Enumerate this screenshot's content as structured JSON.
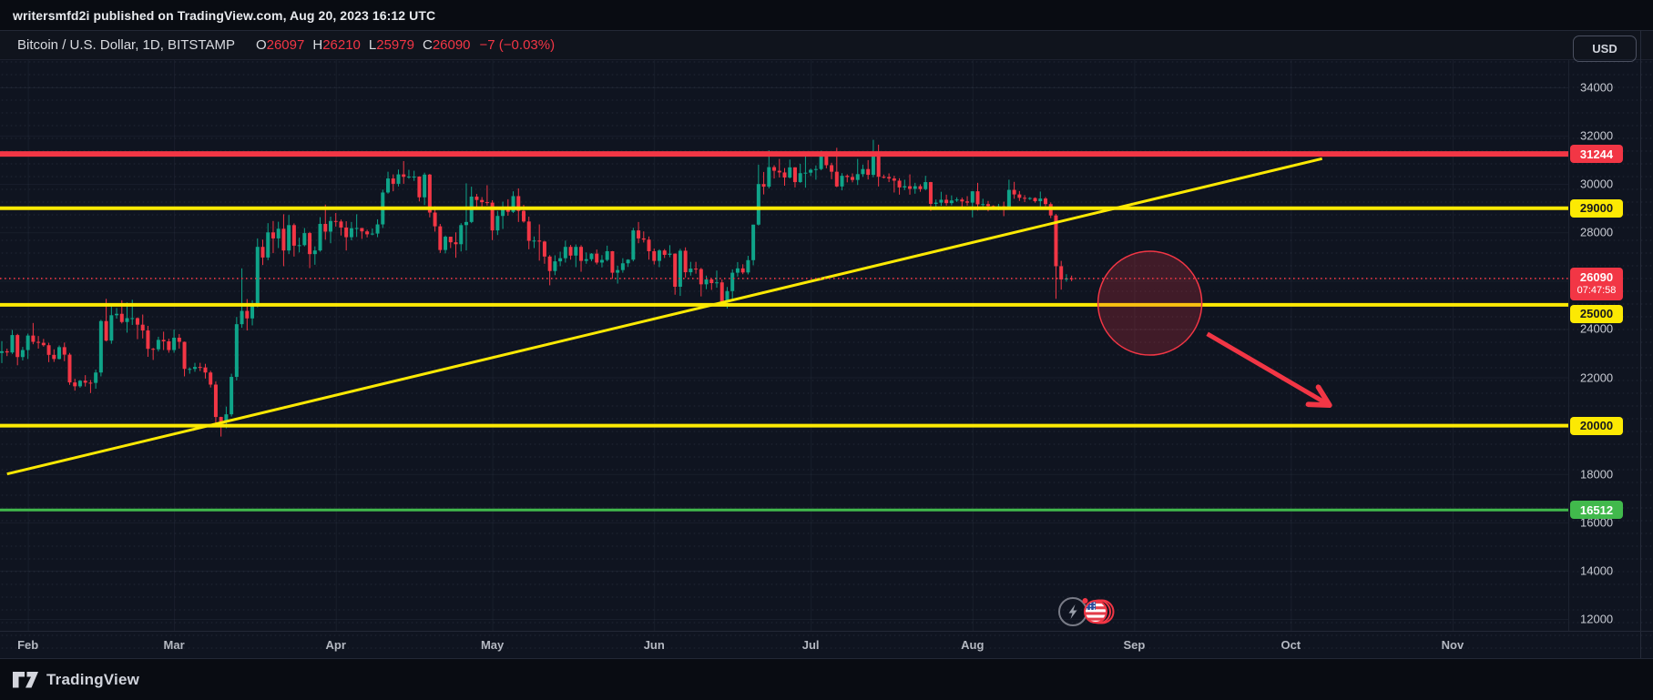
{
  "top_bar": {
    "text": "writersmfd2i published on TradingView.com, Aug 20, 2023 16:12 UTC"
  },
  "header": {
    "symbol": "Bitcoin / U.S. Dollar, 1D, BITSTAMP",
    "ohlc": {
      "o_label": "O",
      "o": "26097",
      "h_label": "H",
      "h": "26210",
      "l_label": "L",
      "l": "25979",
      "c_label": "C",
      "c": "26090"
    },
    "change": "−7 (−0.03%)",
    "currency_button": "USD"
  },
  "footer": {
    "brand": "TradingView"
  },
  "colors": {
    "up": "#0fa489",
    "down": "#f23645",
    "red": "#f23645",
    "yellow": "#fce903",
    "green": "#41b94c",
    "grid": "rgba(160,170,195,0.07)",
    "axis_text": "#c7cad2",
    "label_dark_text": "#15181e"
  },
  "chart_data": {
    "type": "candlestick",
    "title": "Bitcoin / U.S. Dollar",
    "timeframe": "1D",
    "exchange": "BITSTAMP",
    "ylim": [
      11510,
      35130
    ],
    "grid": true,
    "y_ticks": [
      34000,
      32000,
      30000,
      28000,
      26000,
      24000,
      22000,
      20000,
      18000,
      16000,
      14000,
      12000
    ],
    "x_ticks": [
      {
        "label": "Feb",
        "day": 5
      },
      {
        "label": "Mar",
        "day": 33
      },
      {
        "label": "Apr",
        "day": 64
      },
      {
        "label": "May",
        "day": 94
      },
      {
        "label": "Jun",
        "day": 125
      },
      {
        "label": "Jul",
        "day": 155
      },
      {
        "label": "Aug",
        "day": 186
      },
      {
        "label": "Sep",
        "day": 217
      },
      {
        "label": "Oct",
        "day": 247
      },
      {
        "label": "Nov",
        "day": 278
      }
    ],
    "price_lines": [
      {
        "price": 31244,
        "label": "31244",
        "color": "red",
        "thickness": 6,
        "label_text": "light"
      },
      {
        "price": 29000,
        "label": "29000",
        "color": "yellow",
        "thickness": 4,
        "label_text": "dark"
      },
      {
        "price": 25000,
        "label": "25000",
        "color": "yellow",
        "thickness": 4,
        "label_text": "dark",
        "label_below": true
      },
      {
        "price": 20000,
        "label": "20000",
        "color": "yellow",
        "thickness": 4,
        "label_text": "dark"
      },
      {
        "price": 16512,
        "label": "16512",
        "color": "green",
        "thickness": 3,
        "label_text": "light"
      }
    ],
    "last_price": {
      "value": 26090,
      "label": "26090",
      "countdown": "07:47:58",
      "color": "red"
    },
    "trendline": {
      "from": {
        "day": 1,
        "price": 18000
      },
      "to": {
        "day": 253,
        "price": 31050
      },
      "color": "yellow",
      "thickness": 3
    },
    "annotations": {
      "circle": {
        "center_day": 220,
        "center_price": 25070,
        "radius_px": 57,
        "color": "red"
      },
      "arrow": {
        "from": {
          "day": 231,
          "price": 23800
        },
        "to": {
          "day": 254,
          "price": 20900
        },
        "color": "red",
        "thickness": 5
      }
    },
    "candles": [
      [
        23010,
        23500,
        22590,
        23080
      ],
      [
        23080,
        23190,
        22880,
        23030
      ],
      [
        23030,
        23960,
        22970,
        23750
      ],
      [
        23750,
        23800,
        22500,
        22840
      ],
      [
        22840,
        23260,
        22700,
        23130
      ],
      [
        23130,
        23810,
        22760,
        23730
      ],
      [
        23730,
        24250,
        23370,
        23470
      ],
      [
        23470,
        23710,
        23190,
        23430
      ],
      [
        23430,
        23590,
        23270,
        23330
      ],
      [
        23330,
        23430,
        22630,
        22930
      ],
      [
        22930,
        23160,
        22640,
        22760
      ],
      [
        22760,
        23320,
        22740,
        23250
      ],
      [
        23250,
        23440,
        22670,
        22940
      ],
      [
        22940,
        23010,
        21690,
        21790
      ],
      [
        21790,
        21940,
        21450,
        21630
      ],
      [
        21630,
        21890,
        21570,
        21860
      ],
      [
        21860,
        22090,
        21620,
        21780
      ],
      [
        21780,
        21890,
        21350,
        21770
      ],
      [
        21770,
        22320,
        21530,
        22200
      ],
      [
        22200,
        24380,
        22040,
        24330
      ],
      [
        24330,
        25250,
        23490,
        23520
      ],
      [
        23520,
        24990,
        23390,
        24570
      ],
      [
        24570,
        24870,
        24430,
        24630
      ],
      [
        24630,
        25190,
        24230,
        24290
      ],
      [
        24290,
        25100,
        23850,
        24450
      ],
      [
        24450,
        25210,
        24170,
        24450
      ],
      [
        24450,
        24480,
        23580,
        24180
      ],
      [
        24180,
        24600,
        23610,
        23940
      ],
      [
        23940,
        24130,
        22850,
        23180
      ],
      [
        23180,
        23220,
        22720,
        23160
      ],
      [
        23160,
        23680,
        23070,
        23550
      ],
      [
        23550,
        23890,
        23130,
        23490
      ],
      [
        23490,
        23600,
        23020,
        23130
      ],
      [
        23130,
        23980,
        23020,
        23640
      ],
      [
        23640,
        23790,
        23190,
        23470
      ],
      [
        23470,
        23480,
        22040,
        22350
      ],
      [
        22350,
        22410,
        22150,
        22350
      ],
      [
        22350,
        22600,
        22230,
        22430
      ],
      [
        22430,
        22600,
        22260,
        22410
      ],
      [
        22410,
        22560,
        21950,
        22200
      ],
      [
        22200,
        22270,
        21580,
        21700
      ],
      [
        21700,
        21830,
        20050,
        20360
      ],
      [
        20360,
        20370,
        19550,
        20150
      ],
      [
        20150,
        20790,
        19890,
        20470
      ],
      [
        20470,
        22150,
        20380,
        22020
      ],
      [
        22020,
        24500,
        21870,
        24200
      ],
      [
        24200,
        26510,
        24050,
        24750
      ],
      [
        24750,
        25240,
        23940,
        24440
      ],
      [
        24440,
        25190,
        24150,
        25060
      ],
      [
        25060,
        27750,
        24900,
        27400
      ],
      [
        27400,
        27700,
        26650,
        26960
      ],
      [
        26960,
        28380,
        26850,
        28000
      ],
      [
        28000,
        28470,
        27140,
        27750
      ],
      [
        27750,
        28440,
        27350,
        28150
      ],
      [
        28150,
        28750,
        26600,
        27250
      ],
      [
        27250,
        28720,
        27100,
        28300
      ],
      [
        28300,
        28370,
        27000,
        27450
      ],
      [
        27450,
        27780,
        27170,
        27470
      ],
      [
        27470,
        28180,
        27420,
        27970
      ],
      [
        27970,
        28020,
        26520,
        27100
      ],
      [
        27100,
        27420,
        26660,
        27250
      ],
      [
        27250,
        28630,
        27200,
        28350
      ],
      [
        28350,
        29150,
        27700,
        28030
      ],
      [
        28030,
        28650,
        27550,
        28470
      ],
      [
        28470,
        28800,
        28240,
        28450
      ],
      [
        28450,
        28530,
        27870,
        28200
      ],
      [
        28200,
        28460,
        27250,
        27800
      ],
      [
        27800,
        28430,
        27670,
        28170
      ],
      [
        28170,
        28750,
        27810,
        28180
      ],
      [
        28180,
        28180,
        27730,
        28040
      ],
      [
        28040,
        28110,
        27790,
        27920
      ],
      [
        27920,
        28160,
        27880,
        27950
      ],
      [
        27950,
        28540,
        27800,
        28330
      ],
      [
        28330,
        29770,
        28180,
        29650
      ],
      [
        29650,
        30510,
        29600,
        30230
      ],
      [
        30230,
        30400,
        29700,
        30010
      ],
      [
        30010,
        30600,
        29900,
        30400
      ],
      [
        30400,
        30950,
        30010,
        30300
      ],
      [
        30300,
        30590,
        30220,
        30310
      ],
      [
        30310,
        30550,
        30130,
        30310
      ],
      [
        30310,
        30320,
        29280,
        29450
      ],
      [
        29450,
        30470,
        29130,
        30390
      ],
      [
        30390,
        30420,
        28620,
        28820
      ],
      [
        28820,
        29080,
        28030,
        28250
      ],
      [
        28250,
        28350,
        27150,
        27270
      ],
      [
        27270,
        27870,
        27130,
        27820
      ],
      [
        27820,
        27820,
        27350,
        27590
      ],
      [
        27590,
        28000,
        26950,
        27510
      ],
      [
        27510,
        28380,
        27210,
        28300
      ],
      [
        28300,
        30030,
        27250,
        28430
      ],
      [
        28430,
        29890,
        28380,
        29480
      ],
      [
        29480,
        29590,
        28930,
        29340
      ],
      [
        29340,
        29460,
        29050,
        29250
      ],
      [
        29250,
        29950,
        29110,
        29230
      ],
      [
        29230,
        29330,
        27680,
        28080
      ],
      [
        28080,
        28890,
        27890,
        28680
      ],
      [
        28680,
        29270,
        28140,
        29030
      ],
      [
        29030,
        29370,
        28690,
        28850
      ],
      [
        28850,
        29700,
        28800,
        29500
      ],
      [
        29500,
        29820,
        28430,
        28890
      ],
      [
        28890,
        29140,
        28400,
        28450
      ],
      [
        28450,
        28650,
        27300,
        27650
      ],
      [
        27650,
        27830,
        27350,
        27660
      ],
      [
        27660,
        28330,
        26830,
        27620
      ],
      [
        27620,
        27650,
        26700,
        27000
      ],
      [
        27000,
        27060,
        25810,
        26400
      ],
      [
        26400,
        27050,
        26230,
        26800
      ],
      [
        26800,
        27200,
        26600,
        26930
      ],
      [
        26930,
        27660,
        26750,
        27400
      ],
      [
        27400,
        27480,
        26870,
        27040
      ],
      [
        27040,
        27500,
        26560,
        27400
      ],
      [
        27400,
        27470,
        26370,
        26820
      ],
      [
        26820,
        27170,
        26700,
        26890
      ],
      [
        26890,
        27140,
        26810,
        27120
      ],
      [
        27120,
        27290,
        26670,
        26750
      ],
      [
        26750,
        27060,
        26550,
        26860
      ],
      [
        26860,
        27450,
        26800,
        27220
      ],
      [
        27220,
        27230,
        26080,
        26330
      ],
      [
        26330,
        26620,
        25880,
        26440
      ],
      [
        26440,
        26930,
        26330,
        26720
      ],
      [
        26720,
        26890,
        26570,
        26870
      ],
      [
        26870,
        28190,
        26800,
        28080
      ],
      [
        28080,
        28430,
        27550,
        27750
      ],
      [
        27750,
        28040,
        27580,
        27700
      ],
      [
        27700,
        27830,
        26870,
        27220
      ],
      [
        27220,
        27330,
        26670,
        26820
      ],
      [
        26820,
        27300,
        26560,
        27250
      ],
      [
        27250,
        27310,
        26940,
        27070
      ],
      [
        27070,
        27470,
        26970,
        27120
      ],
      [
        27120,
        27130,
        25420,
        25750
      ],
      [
        25750,
        27320,
        25370,
        27240
      ],
      [
        27240,
        27380,
        26130,
        26350
      ],
      [
        26350,
        26780,
        26210,
        26500
      ],
      [
        26500,
        26780,
        26290,
        26480
      ],
      [
        26480,
        26530,
        25350,
        25850
      ],
      [
        25850,
        26210,
        25650,
        26050
      ],
      [
        26050,
        26090,
        25620,
        25900
      ],
      [
        25900,
        26420,
        25710,
        25930
      ],
      [
        25930,
        26050,
        25050,
        25130
      ],
      [
        25130,
        25740,
        24850,
        25570
      ],
      [
        25570,
        26470,
        25250,
        26330
      ],
      [
        26330,
        26770,
        26170,
        26510
      ],
      [
        26510,
        26680,
        26270,
        26340
      ],
      [
        26340,
        27030,
        26260,
        26850
      ],
      [
        26850,
        28320,
        26640,
        28320
      ],
      [
        28320,
        30800,
        28280,
        30000
      ],
      [
        30000,
        30500,
        29570,
        29890
      ],
      [
        29890,
        31400,
        29820,
        30700
      ],
      [
        30700,
        30780,
        30230,
        30550
      ],
      [
        30550,
        31040,
        30270,
        30480
      ],
      [
        30480,
        30660,
        29930,
        30270
      ],
      [
        30270,
        31010,
        30230,
        30690
      ],
      [
        30690,
        30700,
        29860,
        30080
      ],
      [
        30080,
        30840,
        30050,
        30450
      ],
      [
        30450,
        31280,
        29850,
        30470
      ],
      [
        30470,
        30640,
        30330,
        30590
      ],
      [
        30590,
        30770,
        30180,
        30620
      ],
      [
        30620,
        31380,
        30570,
        31160
      ],
      [
        31160,
        31320,
        30650,
        30780
      ],
      [
        30780,
        30880,
        30200,
        30510
      ],
      [
        30510,
        31500,
        29870,
        29900
      ],
      [
        29900,
        30450,
        29740,
        30340
      ],
      [
        30340,
        30400,
        30070,
        30290
      ],
      [
        30290,
        30440,
        30070,
        30170
      ],
      [
        30170,
        31040,
        29960,
        30410
      ],
      [
        30410,
        30800,
        30300,
        30620
      ],
      [
        30620,
        30990,
        30190,
        30380
      ],
      [
        30380,
        31830,
        30280,
        31250
      ],
      [
        31250,
        31630,
        29900,
        30300
      ],
      [
        30300,
        30390,
        30230,
        30290
      ],
      [
        30290,
        30440,
        30080,
        30230
      ],
      [
        30230,
        30340,
        29650,
        30140
      ],
      [
        30140,
        30240,
        29560,
        29860
      ],
      [
        29860,
        30180,
        29750,
        29910
      ],
      [
        29910,
        30400,
        29560,
        29800
      ],
      [
        29800,
        30050,
        29600,
        29910
      ],
      [
        29910,
        29990,
        29680,
        29790
      ],
      [
        29790,
        30340,
        29740,
        30080
      ],
      [
        30080,
        30090,
        28890,
        29180
      ],
      [
        29180,
        29360,
        29050,
        29230
      ],
      [
        29230,
        29680,
        29100,
        29350
      ],
      [
        29350,
        29560,
        29110,
        29210
      ],
      [
        29210,
        29530,
        29120,
        29320
      ],
      [
        29320,
        29450,
        29260,
        29360
      ],
      [
        29360,
        29440,
        29010,
        29280
      ],
      [
        29280,
        29500,
        29110,
        29230
      ],
      [
        29230,
        29710,
        28620,
        29700
      ],
      [
        29700,
        30050,
        28900,
        29160
      ],
      [
        29160,
        29390,
        28960,
        29170
      ],
      [
        29170,
        29300,
        28870,
        29090
      ],
      [
        29090,
        29120,
        28950,
        29050
      ],
      [
        29050,
        29180,
        28920,
        29080
      ],
      [
        29080,
        29270,
        28670,
        29050
      ],
      [
        29050,
        30180,
        29030,
        29760
      ],
      [
        29760,
        30090,
        29390,
        29570
      ],
      [
        29570,
        29710,
        29300,
        29430
      ],
      [
        29430,
        29540,
        29250,
        29400
      ],
      [
        29400,
        29460,
        29340,
        29420
      ],
      [
        29420,
        29450,
        29230,
        29290
      ],
      [
        29290,
        29690,
        29050,
        29400
      ],
      [
        29400,
        29460,
        29080,
        29170
      ],
      [
        29170,
        29240,
        28590,
        28700
      ],
      [
        28700,
        28760,
        25250,
        26600
      ],
      [
        26600,
        26820,
        25630,
        26050
      ],
      [
        26050,
        26270,
        25960,
        26090
      ],
      [
        26097,
        26210,
        25979,
        26090
      ]
    ]
  }
}
